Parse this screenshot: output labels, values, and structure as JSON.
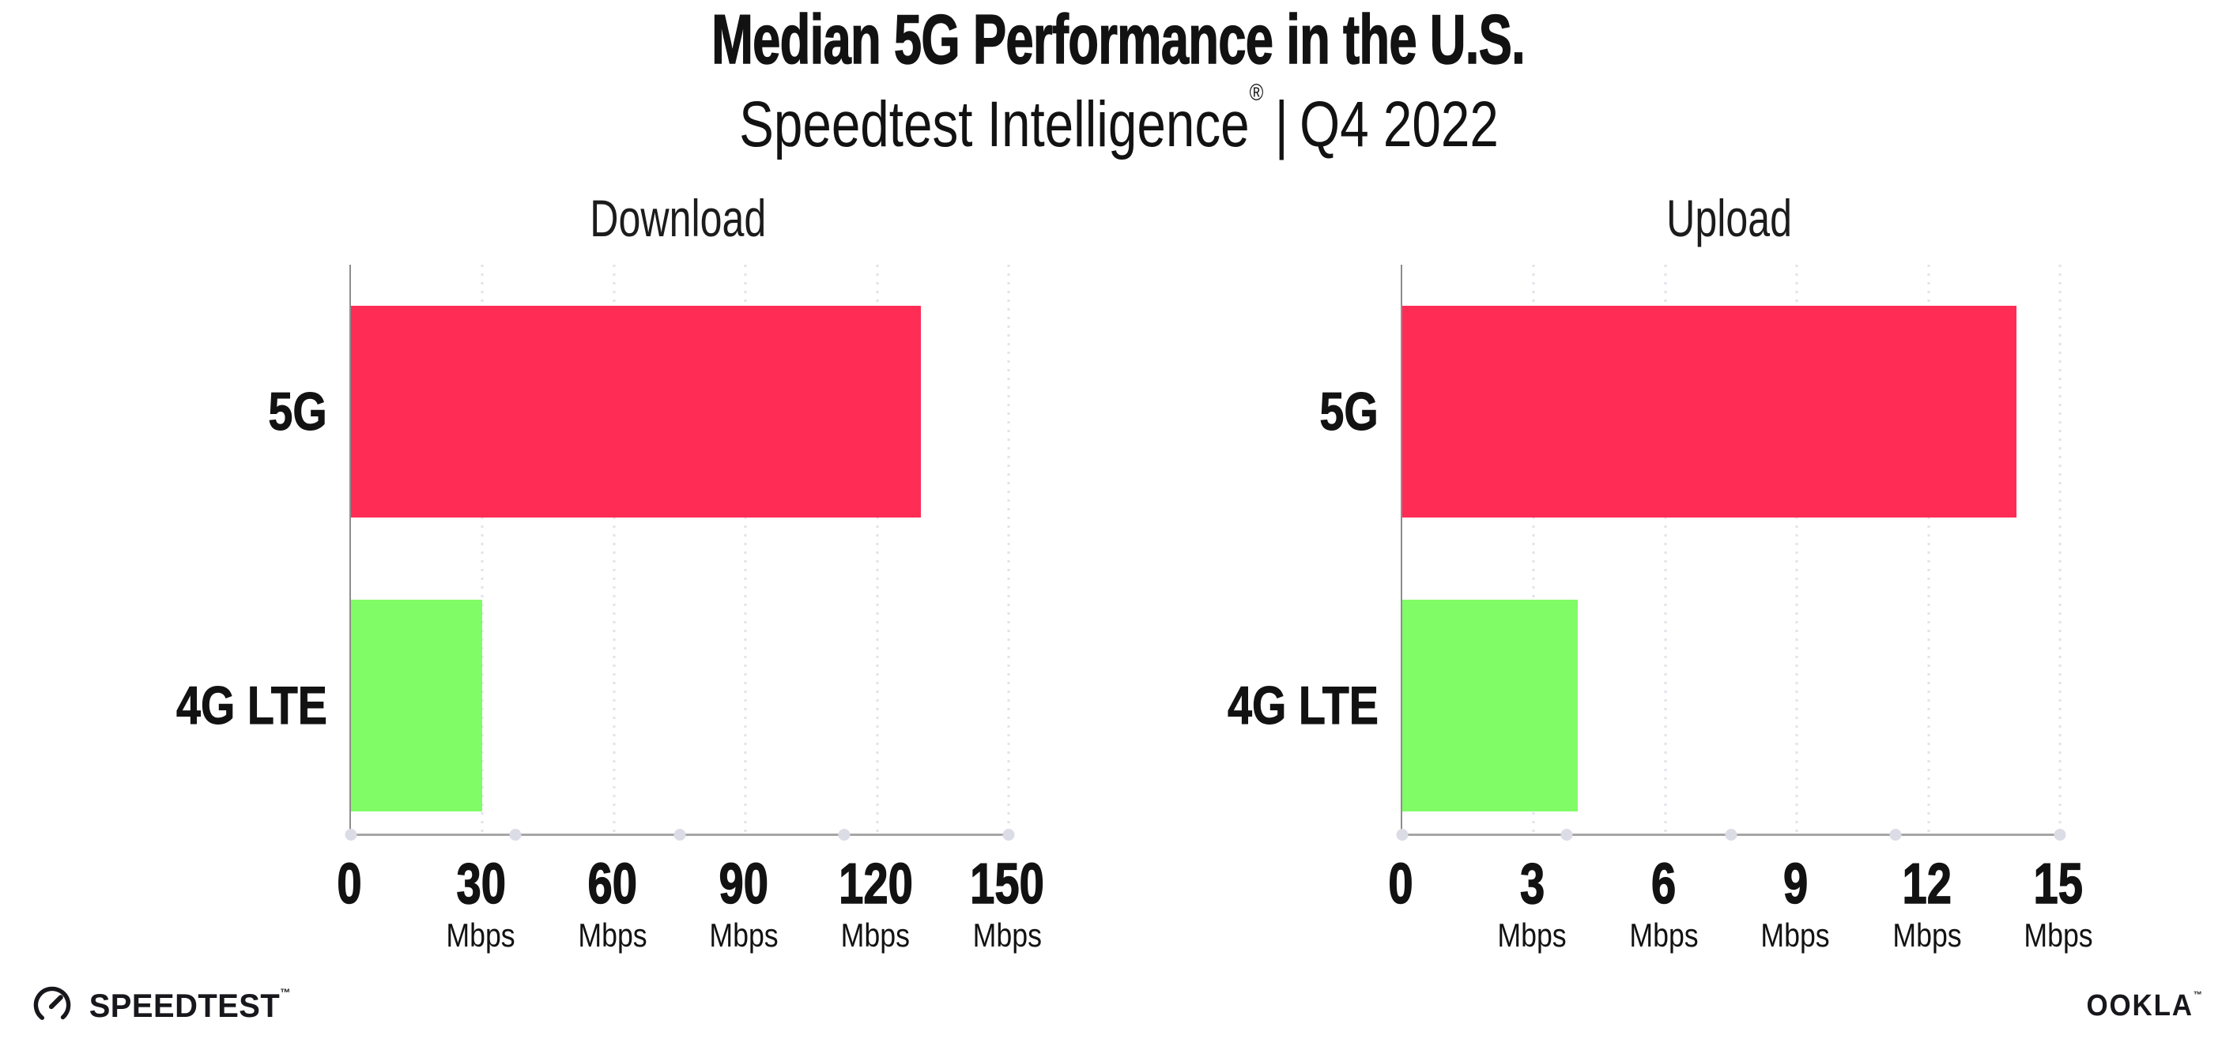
{
  "header": {
    "title": "Median 5G Performance in the U.S.",
    "subtitle_brand": "Speedtest Intelligence",
    "subtitle_reg": "®",
    "subtitle_separator": "|",
    "subtitle_period": "Q4 2022"
  },
  "chart_data": [
    {
      "type": "bar",
      "orientation": "horizontal",
      "title": "Download",
      "categories": [
        "5G",
        "4G LTE"
      ],
      "values": [
        130,
        30
      ],
      "unit": "Mbps",
      "xlabel": "",
      "ylabel": "",
      "xlim": [
        0,
        150
      ],
      "xticks": [
        0,
        30,
        60,
        90,
        120,
        150
      ],
      "bar_colors": [
        "#ff2d55",
        "#80fc66"
      ],
      "grid": "dotted vertical gridlines at each tick",
      "legend": "none"
    },
    {
      "type": "bar",
      "orientation": "horizontal",
      "title": "Upload",
      "categories": [
        "5G",
        "4G LTE"
      ],
      "values": [
        14,
        4
      ],
      "unit": "Mbps",
      "xlabel": "",
      "ylabel": "",
      "xlim": [
        0,
        15
      ],
      "xticks": [
        0,
        3,
        6,
        9,
        12,
        15
      ],
      "bar_colors": [
        "#ff2d55",
        "#80fc66"
      ],
      "grid": "dotted vertical gridlines at each tick",
      "legend": "none"
    }
  ],
  "footer": {
    "speedtest_logo_text": "SPEEDTEST",
    "speedtest_reg": "™",
    "ookla_logo_text": "OOKLA",
    "ookla_reg": "™"
  },
  "colors": {
    "bar_5g": "#ff2d55",
    "bar_4g_lte": "#80fc66",
    "axis_y": "#8d8d8d",
    "axis_x": "#a6a6a6",
    "grid_dot": "#e2e2ee",
    "axis_quarter_dot": "#dcdce6",
    "text": "#121212",
    "background": "#ffffff"
  }
}
